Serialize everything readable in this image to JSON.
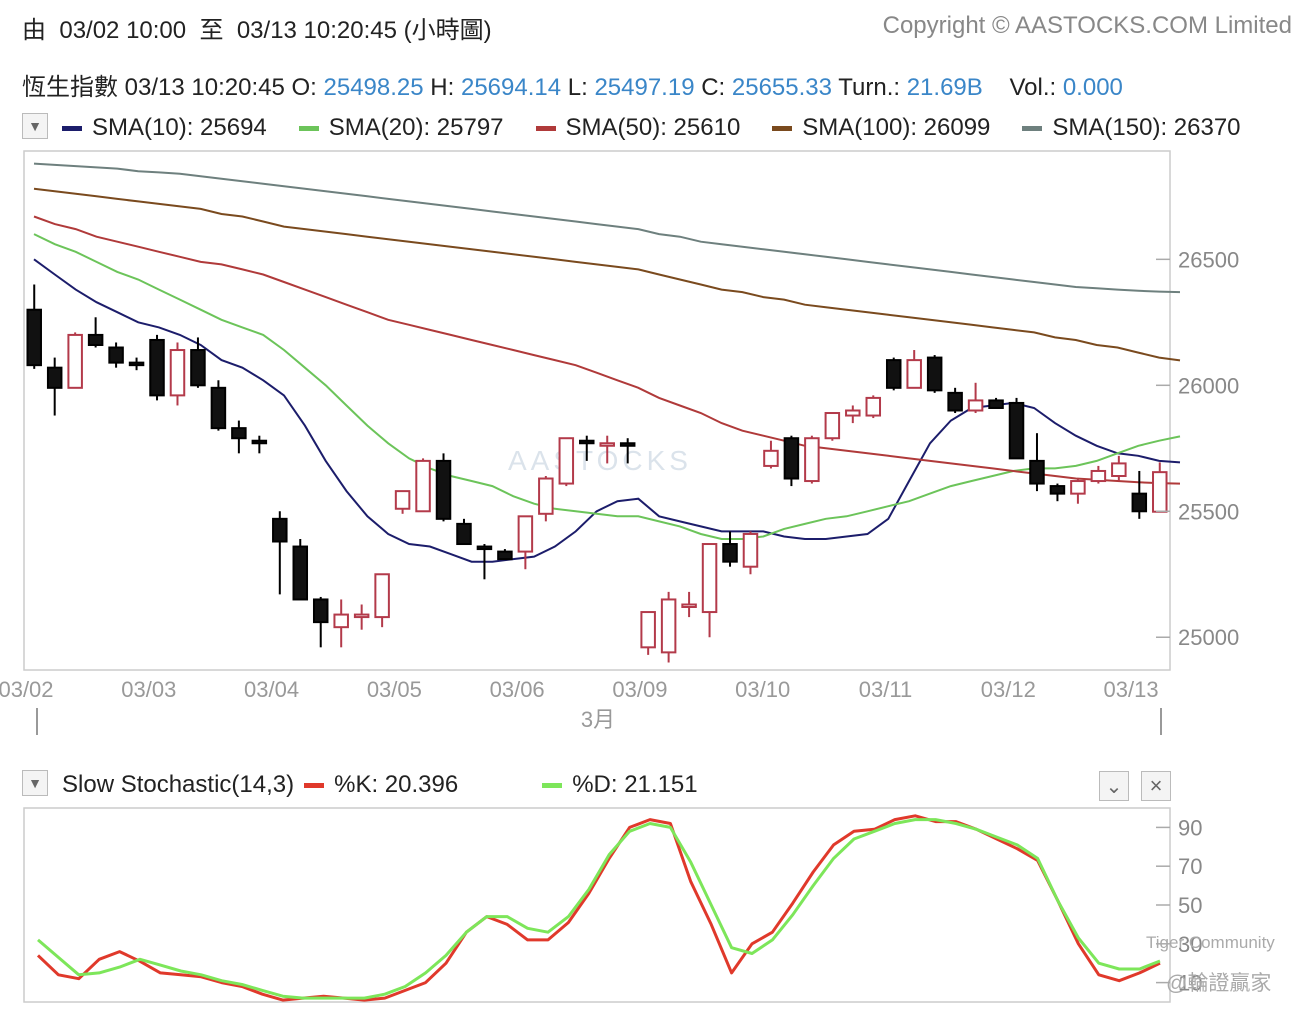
{
  "header": {
    "range_from": "由",
    "range_start": "03/02 10:00",
    "range_to": "至",
    "range_end": "03/13 10:20:45",
    "range_type": "(小時圖)",
    "copyright": "Copyright © AASTOCKS.COM Limited"
  },
  "quote": {
    "name": "恆生指數",
    "time": "03/13 10:20:45",
    "o_label": "O:",
    "o": "25498.25",
    "h_label": "H:",
    "h": "25694.14",
    "l_label": "L:",
    "l": "25497.19",
    "c_label": "C:",
    "c": "25655.33",
    "turn_label": "Turn.:",
    "turn": "21.69B",
    "vol_label": "Vol.:",
    "vol": "0.000"
  },
  "sma_legend": [
    {
      "label": "SMA(10): 25694",
      "color": "#1c1d6b"
    },
    {
      "label": "SMA(20): 25797",
      "color": "#6cc45a"
    },
    {
      "label": "SMA(50): 25610",
      "color": "#b03a3a"
    },
    {
      "label": "SMA(100): 26099",
      "color": "#7a4a1e"
    },
    {
      "label": "SMA(150): 26370",
      "color": "#6e807e"
    }
  ],
  "stoch_legend": {
    "title": "Slow Stochastic(14,3)",
    "k_label": "%K: 20.396",
    "k_color": "#e0392b",
    "d_label": "%D: 21.151",
    "d_color": "#7de65a"
  },
  "icons": {
    "dropdown": "▼",
    "collapse": "⌄",
    "close": "×"
  },
  "watermark": "AASTOCKS",
  "credits": {
    "community": "Tiger Community",
    "handle": "@輪證贏家"
  },
  "chart_data": [
    {
      "type": "candlestick",
      "ylim": [
        24870,
        26930
      ],
      "yticks": [
        25000,
        25500,
        26000,
        26500
      ],
      "xticks": [
        {
          "label": "03/02",
          "index": 0
        },
        {
          "label": "03/03",
          "index": 6
        },
        {
          "label": "03/04",
          "index": 12
        },
        {
          "label": "03/05",
          "index": 18
        },
        {
          "label": "03/06",
          "index": 24
        },
        {
          "label": "03/09",
          "index": 30
        },
        {
          "label": "03/10",
          "index": 36
        },
        {
          "label": "03/11",
          "index": 42
        },
        {
          "label": "03/12",
          "index": 48
        },
        {
          "label": "03/13",
          "index": 54
        }
      ],
      "month_label": "3月",
      "candles": [
        [
          26300,
          26400,
          26065,
          26080
        ],
        [
          26070,
          26110,
          25880,
          25990
        ],
        [
          25990,
          26210,
          25990,
          26200
        ],
        [
          26200,
          26270,
          26150,
          26160
        ],
        [
          26150,
          26170,
          26070,
          26090
        ],
        [
          26090,
          26110,
          26060,
          26080
        ],
        [
          26180,
          26200,
          25940,
          25960
        ],
        [
          25960,
          26170,
          25920,
          26140
        ],
        [
          26140,
          26190,
          25990,
          26000
        ],
        [
          25990,
          26020,
          25820,
          25830
        ],
        [
          25830,
          25860,
          25730,
          25790
        ],
        [
          25780,
          25800,
          25730,
          25770
        ],
        [
          25470,
          25500,
          25170,
          25380
        ],
        [
          25360,
          25390,
          25150,
          25150
        ],
        [
          25150,
          25160,
          24960,
          25060
        ],
        [
          25040,
          25150,
          24960,
          25090
        ],
        [
          25090,
          25130,
          25030,
          25090
        ],
        [
          25080,
          25250,
          25040,
          25250
        ],
        [
          25510,
          25580,
          25490,
          25580
        ],
        [
          25500,
          25710,
          25500,
          25700
        ],
        [
          25700,
          25730,
          25460,
          25470
        ],
        [
          25450,
          25470,
          25370,
          25370
        ],
        [
          25360,
          25370,
          25230,
          25350
        ],
        [
          25340,
          25350,
          25310,
          25310
        ],
        [
          25340,
          25480,
          25270,
          25480
        ],
        [
          25490,
          25640,
          25460,
          25630
        ],
        [
          25610,
          25790,
          25600,
          25790
        ],
        [
          25780,
          25800,
          25700,
          25770
        ],
        [
          25770,
          25800,
          25690,
          25770
        ],
        [
          25770,
          25790,
          25690,
          25760
        ],
        [
          24960,
          25100,
          24930,
          25100
        ],
        [
          24940,
          25180,
          24900,
          25150
        ],
        [
          25130,
          25180,
          25080,
          25130
        ],
        [
          25100,
          25370,
          25000,
          25370
        ],
        [
          25370,
          25420,
          25280,
          25300
        ],
        [
          25280,
          25420,
          25250,
          25410
        ],
        [
          25680,
          25780,
          25670,
          25740
        ],
        [
          25790,
          25800,
          25600,
          25630
        ],
        [
          25620,
          25800,
          25610,
          25790
        ],
        [
          25790,
          25890,
          25780,
          25890
        ],
        [
          25880,
          25920,
          25850,
          25900
        ],
        [
          25880,
          25960,
          25870,
          25950
        ],
        [
          26100,
          26110,
          25980,
          25990
        ],
        [
          25990,
          26140,
          25990,
          26100
        ],
        [
          26110,
          26120,
          25970,
          25980
        ],
        [
          25970,
          25990,
          25890,
          25900
        ],
        [
          25900,
          26010,
          25890,
          25940
        ],
        [
          25940,
          25950,
          25910,
          25910
        ],
        [
          25930,
          25950,
          25720,
          25710
        ],
        [
          25700,
          25810,
          25580,
          25610
        ],
        [
          25600,
          25610,
          25540,
          25570
        ],
        [
          25570,
          25630,
          25530,
          25620
        ],
        [
          25620,
          25680,
          25610,
          25660
        ],
        [
          25640,
          25720,
          25620,
          25690
        ],
        [
          25570,
          25660,
          25470,
          25500
        ],
        [
          25498.25,
          25694.14,
          25497.19,
          25655.33
        ]
      ],
      "series": [
        {
          "name": "SMA(10)",
          "color": "#1c1d6b",
          "values": [
            26500,
            26440,
            26380,
            26330,
            26290,
            26250,
            26230,
            26200,
            26160,
            26100,
            26070,
            26020,
            25960,
            25840,
            25700,
            25580,
            25480,
            25410,
            25370,
            25360,
            25330,
            25300,
            25300,
            25310,
            25320,
            25360,
            25420,
            25500,
            25540,
            25550,
            25480,
            25460,
            25440,
            25420,
            25420,
            25420,
            25400,
            25390,
            25390,
            25400,
            25410,
            25470,
            25620,
            25770,
            25860,
            25910,
            25920,
            25930,
            25910,
            25850,
            25800,
            25760,
            25730,
            25720,
            25700,
            25694
          ]
        },
        {
          "name": "SMA(20)",
          "color": "#6cc45a",
          "values": [
            26600,
            26560,
            26530,
            26490,
            26450,
            26420,
            26380,
            26340,
            26300,
            26260,
            26230,
            26200,
            26140,
            26070,
            26000,
            25920,
            25840,
            25770,
            25710,
            25670,
            25640,
            25620,
            25600,
            25560,
            25530,
            25510,
            25500,
            25490,
            25480,
            25480,
            25460,
            25440,
            25410,
            25390,
            25390,
            25400,
            25430,
            25450,
            25470,
            25480,
            25500,
            25520,
            25540,
            25570,
            25600,
            25620,
            25640,
            25660,
            25670,
            25670,
            25680,
            25700,
            25730,
            25760,
            25780,
            25797
          ]
        },
        {
          "name": "SMA(50)",
          "color": "#b03a3a",
          "values": [
            26670,
            26640,
            26620,
            26590,
            26570,
            26550,
            26530,
            26510,
            26490,
            26480,
            26460,
            26440,
            26410,
            26380,
            26350,
            26320,
            26290,
            26260,
            26240,
            26220,
            26200,
            26180,
            26160,
            26140,
            26120,
            26100,
            26080,
            26050,
            26020,
            25990,
            25950,
            25920,
            25890,
            25850,
            25820,
            25800,
            25780,
            25760,
            25750,
            25740,
            25730,
            25720,
            25710,
            25700,
            25690,
            25680,
            25670,
            25660,
            25650,
            25640,
            25630,
            25625,
            25620,
            25615,
            25612,
            25610
          ]
        },
        {
          "name": "SMA(100)",
          "color": "#7a4a1e",
          "values": [
            26780,
            26770,
            26760,
            26750,
            26740,
            26730,
            26720,
            26710,
            26700,
            26680,
            26670,
            26650,
            26630,
            26620,
            26610,
            26600,
            26590,
            26580,
            26570,
            26560,
            26550,
            26540,
            26530,
            26520,
            26510,
            26500,
            26490,
            26480,
            26470,
            26460,
            26440,
            26420,
            26400,
            26380,
            26370,
            26350,
            26340,
            26320,
            26310,
            26300,
            26290,
            26280,
            26270,
            26260,
            26250,
            26240,
            26230,
            26220,
            26210,
            26190,
            26180,
            26160,
            26150,
            26130,
            26110,
            26099
          ]
        },
        {
          "name": "SMA(150)",
          "color": "#6e807e",
          "values": [
            26880,
            26875,
            26870,
            26865,
            26860,
            26850,
            26845,
            26840,
            26830,
            26820,
            26810,
            26800,
            26790,
            26780,
            26770,
            26760,
            26750,
            26740,
            26730,
            26720,
            26710,
            26700,
            26690,
            26680,
            26670,
            26660,
            26650,
            26640,
            26630,
            26620,
            26600,
            26590,
            26570,
            26560,
            26550,
            26540,
            26530,
            26520,
            26510,
            26500,
            26490,
            26480,
            26470,
            26460,
            26450,
            26440,
            26430,
            26420,
            26410,
            26400,
            26390,
            26385,
            26380,
            26375,
            26372,
            26370
          ]
        }
      ]
    },
    {
      "type": "line",
      "ylim": [
        0,
        100
      ],
      "yticks": [
        10,
        30,
        50,
        70,
        90
      ],
      "series": [
        {
          "name": "%K",
          "color": "#e0392b",
          "values": [
            24,
            14,
            12,
            22,
            26,
            21,
            15,
            14,
            13,
            10,
            8,
            4,
            1,
            2,
            3,
            2,
            1,
            2,
            6,
            10,
            20,
            36,
            44,
            40,
            32,
            32,
            41,
            56,
            74,
            90,
            94,
            92,
            62,
            40,
            15,
            30,
            36,
            51,
            67,
            81,
            88,
            89,
            94,
            96,
            93,
            93,
            89,
            84,
            79,
            73,
            52,
            30,
            14,
            11,
            15,
            20
          ]
        },
        {
          "name": "%D",
          "color": "#7de65a",
          "values": [
            32,
            23,
            14,
            15,
            18,
            22,
            19,
            16,
            14,
            11,
            9,
            6,
            3,
            2,
            2,
            2,
            2,
            4,
            8,
            15,
            24,
            36,
            44,
            44,
            38,
            36,
            44,
            58,
            76,
            88,
            92,
            90,
            72,
            50,
            28,
            25,
            32,
            45,
            60,
            74,
            84,
            88,
            92,
            94,
            94,
            92,
            89,
            85,
            81,
            74,
            52,
            33,
            20,
            17,
            17,
            21.151
          ]
        }
      ]
    }
  ]
}
